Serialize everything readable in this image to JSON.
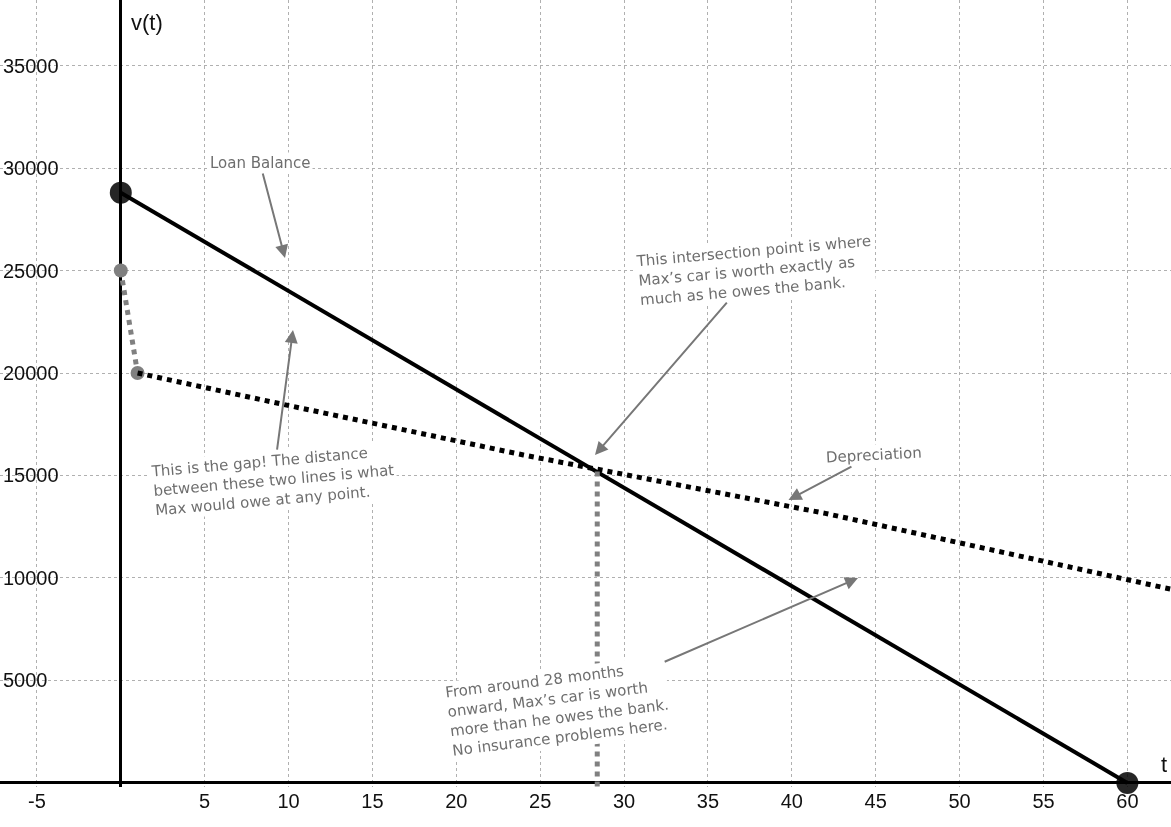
{
  "chart_data": {
    "type": "line",
    "xlabel": "t",
    "ylabel": "v(t)",
    "xlim": [
      -7.2,
      62.6
    ],
    "ylim": [
      -200,
      38200
    ],
    "xticks": [
      -5,
      5,
      10,
      15,
      20,
      25,
      30,
      35,
      40,
      45,
      50,
      55,
      60
    ],
    "yticks": [
      5000,
      10000,
      15000,
      20000,
      25000,
      30000,
      35000
    ],
    "grid": true,
    "series": [
      {
        "color": "#000000",
        "x": [
          0,
          60
        ],
        "values": [
          28800,
          0
        ],
        "marker": "circle",
        "line_style": "solid"
      },
      {
        "color": "#808080",
        "x": [
          0,
          1
        ],
        "values": [
          25000,
          20000
        ],
        "marker": "circle",
        "line_style": "dotted"
      },
      {
        "color": "#000000",
        "x": [
          1,
          9.5,
          24,
          42,
          62.6
        ],
        "values": [
          20000,
          18500,
          16000,
          13150,
          9450
        ],
        "marker": "none",
        "line_style": "dotted"
      },
      {
        "color": "#808080",
        "x": [
          28.4,
          28.4
        ],
        "values": [
          15200,
          -200
        ],
        "marker": "none",
        "line_style": "dotted"
      }
    ],
    "annotations": [
      "Loan Balance",
      "This intersection point is where\nMax’s car is worth exactly as\nmuch as he owes the bank.",
      "This is the gap! The distance\nbetween these two lines is what\nMax would owe at any point.",
      {
        "text": "Depreciation",
        "x": 39.8,
        "y": 13800
      },
      "From around 28 months\nonward, Max’s car is worth\nmore than he owes the bank.\nNo insurance problems here."
    ]
  }
}
